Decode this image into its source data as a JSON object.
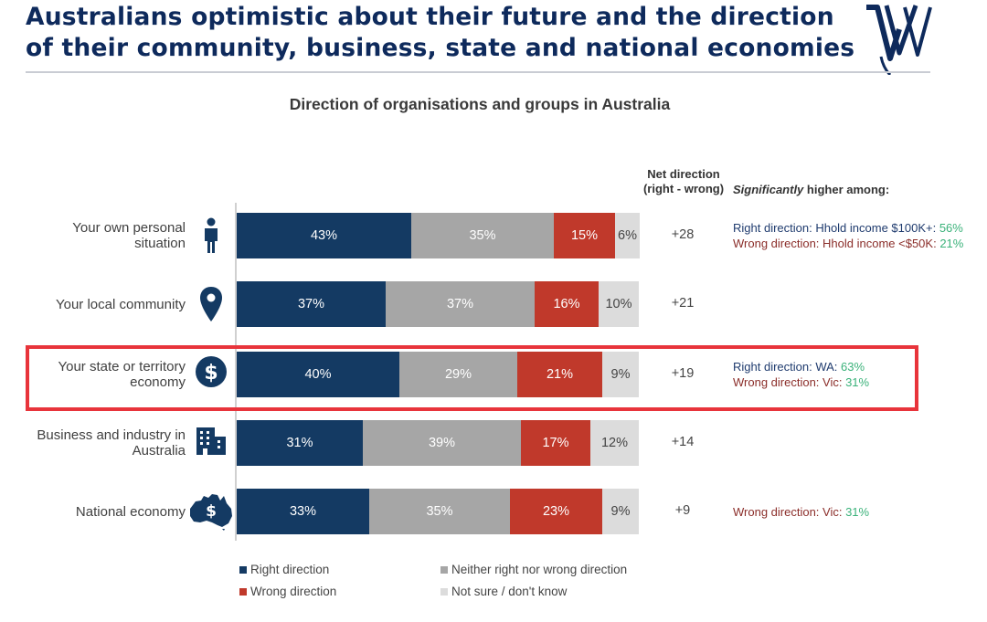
{
  "header": {
    "title_line1": "Australians optimistic about their future and the direction",
    "title_line2": "of their community, business, state and national economies"
  },
  "colors": {
    "right": "#143a63",
    "neither": "#a6a6a6",
    "wrong": "#c0392b",
    "not_sure": "#dcdcdc",
    "highlight": "#e8343b",
    "sig_right": "#1f3b6e",
    "sig_wrong": "#8b2e2a",
    "sig_pct": "#3bb27a"
  },
  "chart_data": {
    "type": "bar",
    "orientation": "horizontal",
    "stacked": true,
    "title": "Direction of organisations and groups in Australia",
    "categories": [
      "Your own personal situation",
      "Your local community",
      "Your state or territory economy",
      "Business and industry in Australia",
      "National economy"
    ],
    "label_lines": [
      [
        "Your own personal",
        "situation"
      ],
      [
        "Your local community"
      ],
      [
        "Your state or territory",
        "economy"
      ],
      [
        "Business and industry in",
        "Australia"
      ],
      [
        "National economy"
      ]
    ],
    "icons": [
      "person-icon",
      "location-pin-icon",
      "dollar-icon",
      "building-icon",
      "australia-map-icon"
    ],
    "series": [
      {
        "name": "Right direction",
        "values": [
          43,
          37,
          40,
          31,
          33
        ],
        "labels": [
          "43%",
          "37%",
          "40%",
          "31%",
          "33%"
        ]
      },
      {
        "name": "Neither right nor wrong direction",
        "values": [
          35,
          37,
          29,
          39,
          35
        ],
        "labels": [
          "35%",
          "37%",
          "29%",
          "39%",
          "35%"
        ]
      },
      {
        "name": "Wrong direction",
        "values": [
          15,
          16,
          21,
          17,
          23
        ],
        "labels": [
          "15%",
          "16%",
          "21%",
          "17%",
          "23%"
        ]
      },
      {
        "name": "Not sure / don't know",
        "values": [
          6,
          10,
          9,
          12,
          9
        ],
        "labels": [
          "6%",
          "10%",
          "9%",
          "12%",
          "9%"
        ]
      }
    ],
    "net_direction": {
      "header_line1": "Net direction",
      "header_line2": "(right - wrong)",
      "values": [
        "+28",
        "+21",
        "+19",
        "+14",
        "+9"
      ]
    },
    "significance": {
      "header_em": "Significantly",
      "header_rest": " higher among:",
      "rows": [
        [
          {
            "type": "right",
            "text": "Right direction: Hhold income $100K+: ",
            "pct": "56%"
          },
          {
            "type": "wrong",
            "text": "Wrong direction: Hhold income <$50K: ",
            "pct": "21%"
          }
        ],
        [],
        [
          {
            "type": "right",
            "text": "Right direction: WA: ",
            "pct": "63%"
          },
          {
            "type": "wrong",
            "text": "Wrong direction: Vic: ",
            "pct": "31%"
          }
        ],
        [],
        [
          {
            "type": "wrong",
            "text": "Wrong direction: Vic: ",
            "pct": "31%"
          }
        ]
      ]
    },
    "highlighted_row": 2,
    "legend": [
      "Right direction",
      "Neither right nor wrong direction",
      "Wrong direction",
      "Not sure / don't know"
    ]
  }
}
